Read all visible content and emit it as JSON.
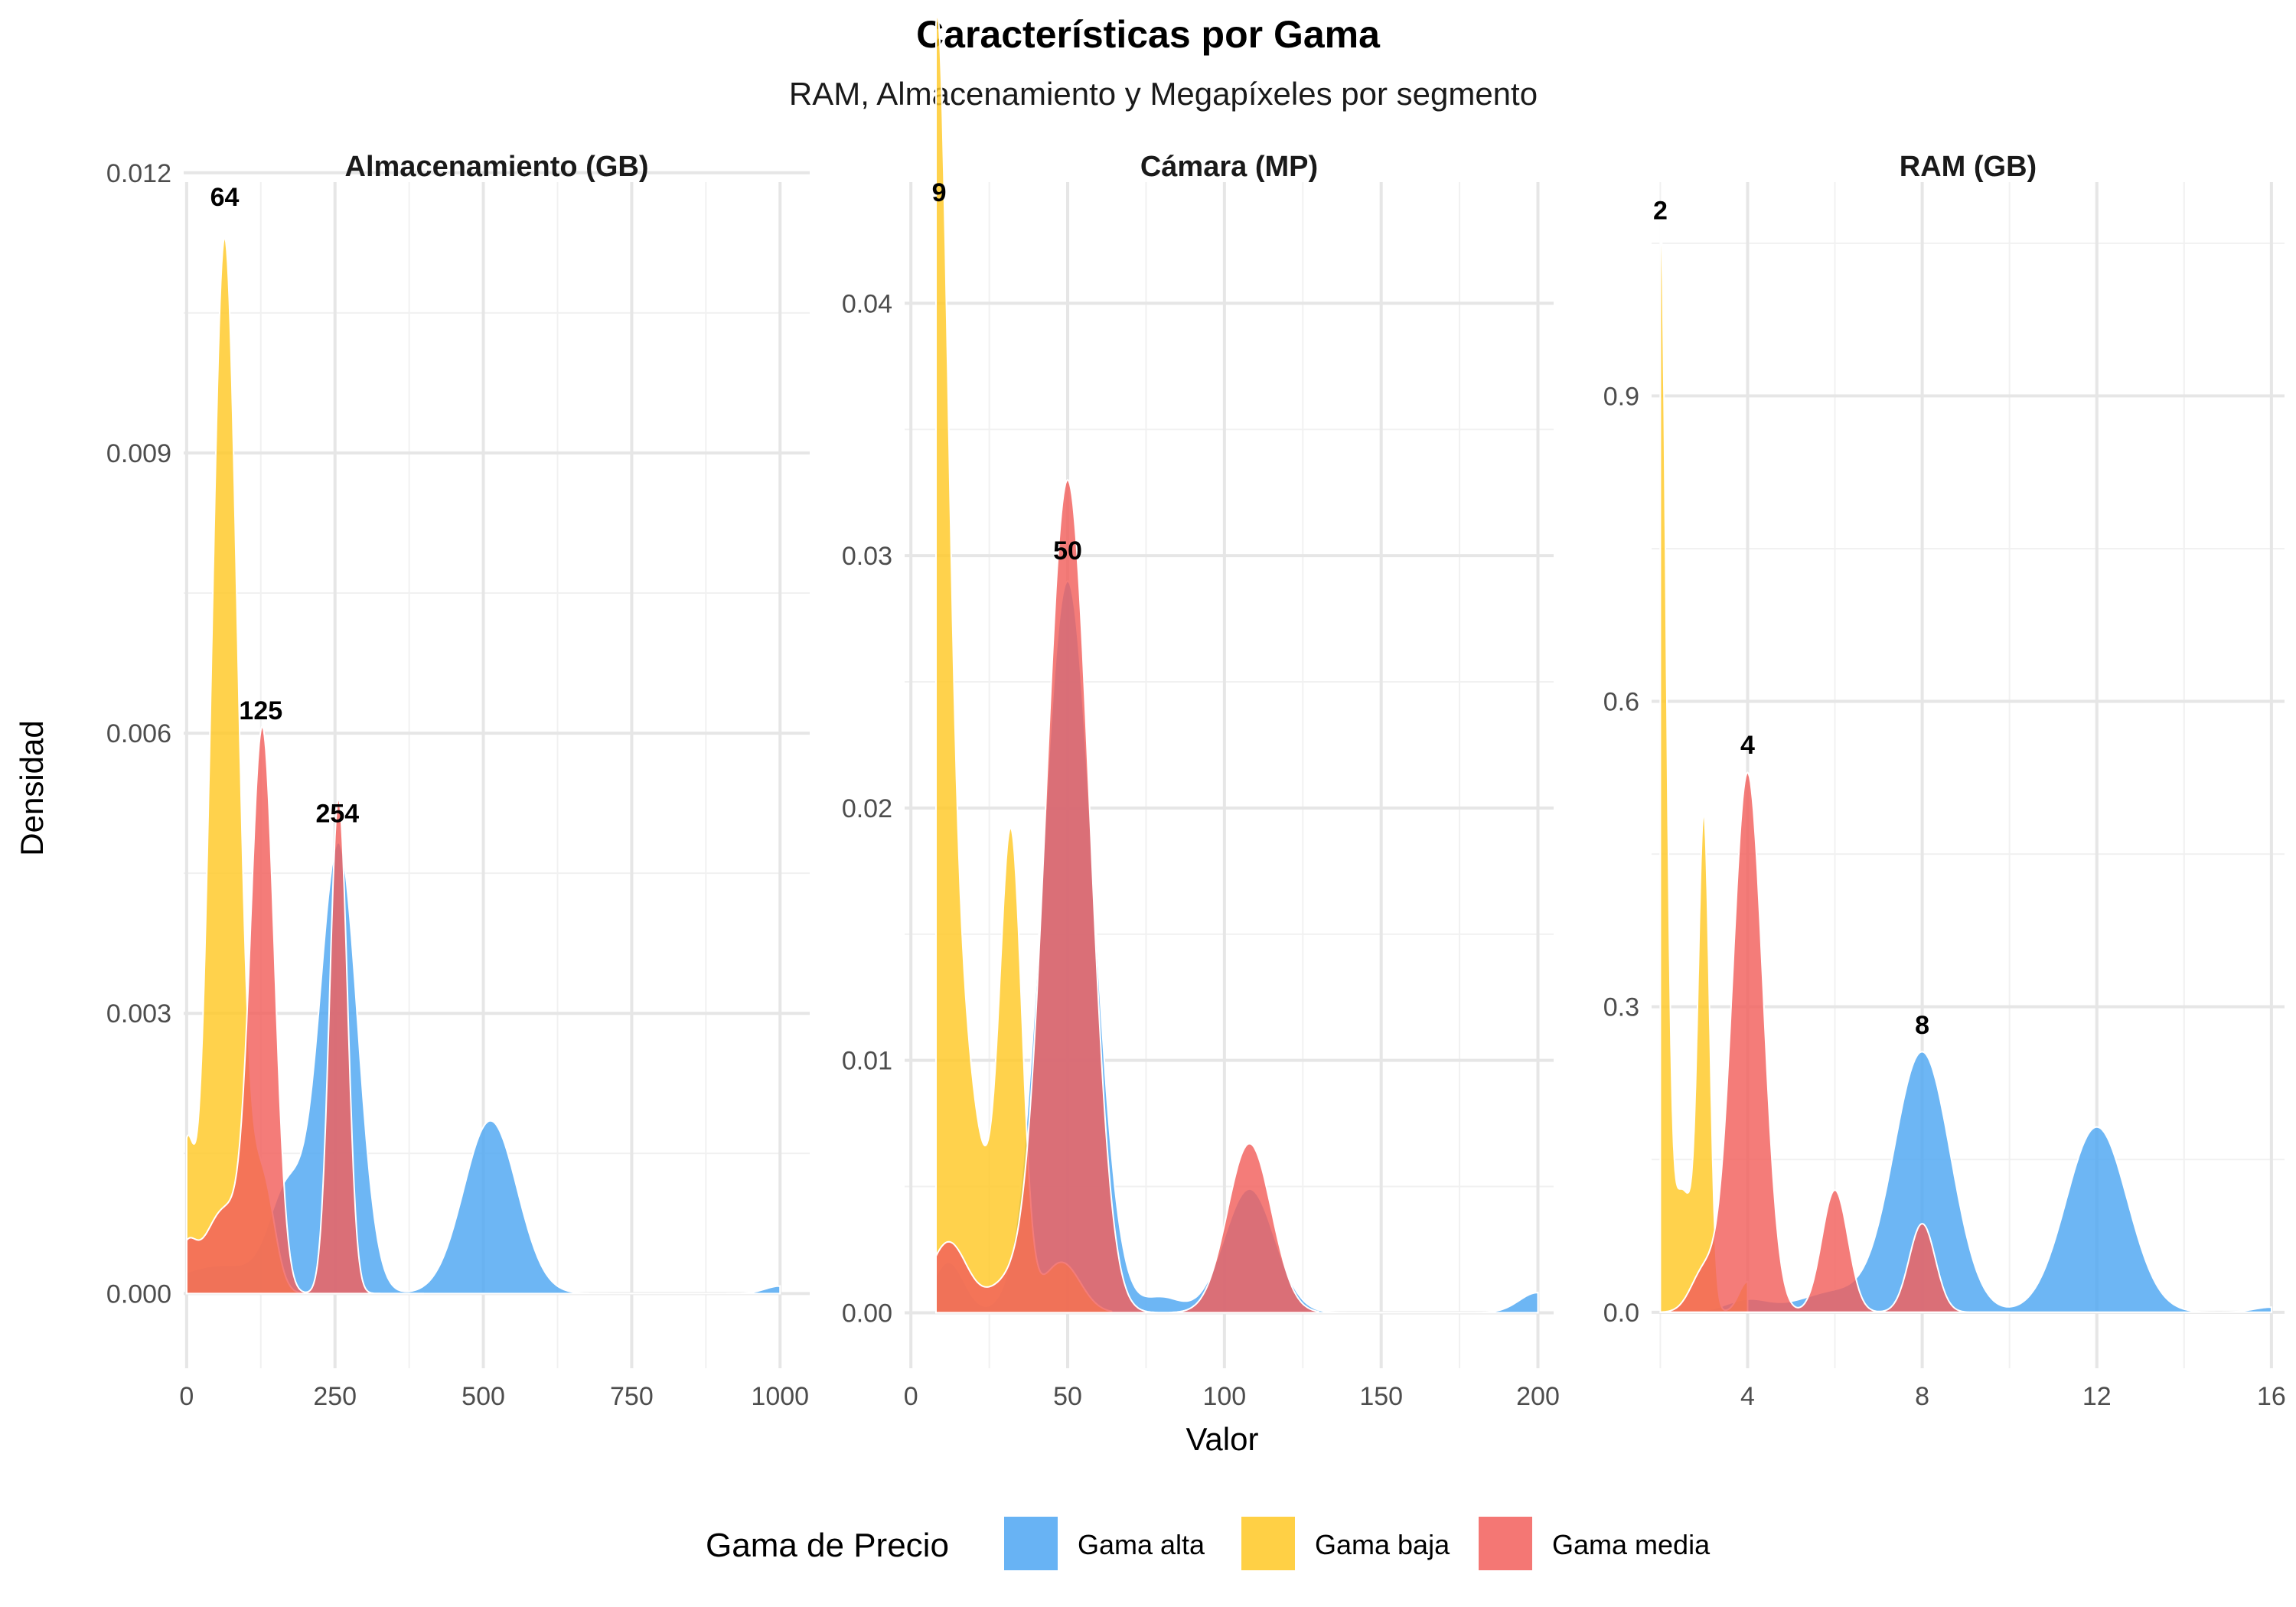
{
  "chart_data": {
    "type": "density",
    "title": "Características por Gama",
    "subtitle": "RAM, Almacenamiento y Megapíxeles por segmento",
    "xlabel": "Valor",
    "ylabel": "Densidad",
    "legend": {
      "title": "Gama de Precio",
      "position": "bottom",
      "items": [
        {
          "name": "Gama alta",
          "color": "#4DA6F2"
        },
        {
          "name": "Gama baja",
          "color": "#FFC825"
        },
        {
          "name": "Gama media",
          "color": "#F25F5C"
        }
      ]
    },
    "facets": [
      {
        "title": "Almacenamiento (GB)",
        "xlim": [
          -5,
          1050
        ],
        "ylim": [
          -0.0008,
          0.0119
        ],
        "x_ticks": [
          0,
          250,
          500,
          750,
          1000
        ],
        "x_tick_labels": [
          "0",
          "250",
          "500",
          "750",
          "1000"
        ],
        "y_ticks": [
          0.0,
          0.003,
          0.006,
          0.009,
          0.012
        ],
        "y_tick_labels": [
          "0.000",
          "0.003",
          "0.006",
          "0.009",
          "0.012"
        ],
        "series": [
          {
            "name": "Gama alta",
            "range": [
              0,
              1000
            ],
            "components": [
              {
                "mu": 60,
                "sd": 80,
                "h": 0.0003
              },
              {
                "mu": 170,
                "sd": 30,
                "h": 0.001
              },
              {
                "mu": 256,
                "sd": 32,
                "h": 0.0048
              },
              {
                "mu": 512,
                "sd": 45,
                "h": 0.00185
              },
              {
                "mu": 1000,
                "sd": 25,
                "h": 8e-05
              }
            ]
          },
          {
            "name": "Gama baja",
            "range": [
              0,
              256
            ],
            "components": [
              {
                "mu": 64,
                "sd": 22,
                "h": 0.0113
              },
              {
                "mu": 0,
                "sd": 12,
                "h": 0.0015
              },
              {
                "mu": 128,
                "sd": 20,
                "h": 0.0012
              }
            ]
          },
          {
            "name": "Gama media",
            "range": [
              0,
              400
            ],
            "components": [
              {
                "mu": 128,
                "sd": 20,
                "h": 0.0059
              },
              {
                "mu": 256,
                "sd": 15,
                "h": 0.0053
              },
              {
                "mu": 64,
                "sd": 35,
                "h": 0.0009
              },
              {
                "mu": 0,
                "sd": 15,
                "h": 0.0004
              }
            ]
          }
        ],
        "annotations": [
          {
            "x": 64,
            "y": 0.0115,
            "label": "64"
          },
          {
            "x": 125,
            "y": 0.006,
            "label": "125"
          },
          {
            "x": 254,
            "y": 0.0049,
            "label": "254"
          }
        ]
      },
      {
        "title": "Cámara (MP)",
        "xlim": [
          -2,
          205
        ],
        "ylim": [
          -0.0022,
          0.0448
        ],
        "x_ticks": [
          0,
          50,
          100,
          150,
          200
        ],
        "x_tick_labels": [
          "0",
          "50",
          "100",
          "150",
          "200"
        ],
        "y_ticks": [
          0.0,
          0.01,
          0.02,
          0.03,
          0.04
        ],
        "y_tick_labels": [
          "0.00",
          "0.01",
          "0.02",
          "0.03",
          "0.04"
        ],
        "series": [
          {
            "name": "Gama alta",
            "range": [
              8,
              200
            ],
            "components": [
              {
                "mu": 50,
                "sd": 8,
                "h": 0.029
              },
              {
                "mu": 108,
                "sd": 8,
                "h": 0.0049
              },
              {
                "mu": 200,
                "sd": 6,
                "h": 0.0008
              },
              {
                "mu": 12,
                "sd": 5,
                "h": 0.002
              },
              {
                "mu": 80,
                "sd": 6,
                "h": 0.0006
              }
            ]
          },
          {
            "name": "Gama baja",
            "range": [
              8,
              64
            ],
            "components": [
              {
                "mu": 8,
                "sd": 3.5,
                "h": 0.0435
              },
              {
                "mu": 13,
                "sd": 5,
                "h": 0.012
              },
              {
                "mu": 32,
                "sd": 3.5,
                "h": 0.018
              },
              {
                "mu": 22,
                "sd": 6,
                "h": 0.0045
              },
              {
                "mu": 48,
                "sd": 6,
                "h": 0.002
              }
            ]
          },
          {
            "name": "Gama media",
            "range": [
              8,
              130
            ],
            "components": [
              {
                "mu": 50,
                "sd": 7,
                "h": 0.033
              },
              {
                "mu": 108,
                "sd": 7,
                "h": 0.0067
              },
              {
                "mu": 12,
                "sd": 6,
                "h": 0.0028
              },
              {
                "mu": 30,
                "sd": 6,
                "h": 0.001
              }
            ]
          }
        ],
        "annotations": [
          {
            "x": 9,
            "y": 0.0435,
            "label": "9"
          },
          {
            "x": 50,
            "y": 0.0293,
            "label": "50"
          }
        ]
      },
      {
        "title": "RAM (GB)",
        "xlim": [
          1.8,
          16.3
        ],
        "ylim": [
          -0.055,
          1.11
        ],
        "x_ticks": [
          4,
          8,
          12,
          16
        ],
        "x_tick_labels": [
          "4",
          "8",
          "12",
          "16"
        ],
        "y_ticks": [
          0.0,
          0.3,
          0.6,
          0.9
        ],
        "y_tick_labels": [
          "0.0",
          "0.3",
          "0.6",
          "0.9"
        ],
        "series": [
          {
            "name": "Gama alta",
            "range": [
              3,
              16
            ],
            "components": [
              {
                "mu": 8,
                "sd": 0.65,
                "h": 0.255
              },
              {
                "mu": 12,
                "sd": 0.7,
                "h": 0.182
              },
              {
                "mu": 6,
                "sd": 0.8,
                "h": 0.02
              },
              {
                "mu": 16,
                "sd": 0.4,
                "h": 0.005
              },
              {
                "mu": 4,
                "sd": 0.5,
                "h": 0.012
              }
            ]
          },
          {
            "name": "Gama baja",
            "range": [
              2,
              4
            ],
            "components": [
              {
                "mu": 2,
                "sd": 0.13,
                "h": 1.05
              },
              {
                "mu": 3,
                "sd": 0.13,
                "h": 0.46
              },
              {
                "mu": 2.5,
                "sd": 0.3,
                "h": 0.12
              },
              {
                "mu": 4,
                "sd": 0.2,
                "h": 0.03
              }
            ]
          },
          {
            "name": "Gama media",
            "range": [
              2,
              10
            ],
            "components": [
              {
                "mu": 4,
                "sd": 0.35,
                "h": 0.53
              },
              {
                "mu": 6,
                "sd": 0.3,
                "h": 0.12
              },
              {
                "mu": 8,
                "sd": 0.3,
                "h": 0.087
              },
              {
                "mu": 3,
                "sd": 0.3,
                "h": 0.04
              }
            ]
          }
        ],
        "annotations": [
          {
            "x": 2,
            "y": 1.06,
            "label": "2"
          },
          {
            "x": 4,
            "y": 0.535,
            "label": "4"
          },
          {
            "x": 8,
            "y": 0.26,
            "label": "8"
          }
        ]
      }
    ]
  }
}
